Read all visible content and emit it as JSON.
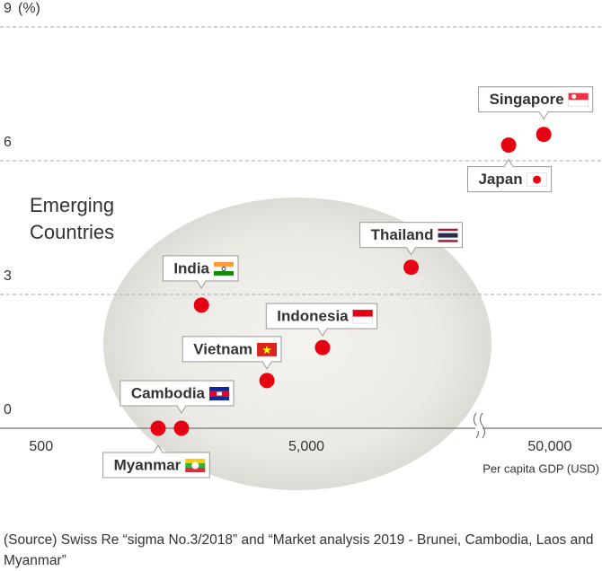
{
  "chart_data": {
    "type": "scatter",
    "y_unit": "(%)",
    "annotation": [
      "Emerging",
      "Countries"
    ],
    "xlabel": "Per capita GDP (USD)",
    "log_x": true,
    "xlim": [
      350,
      65000
    ],
    "xticks": [
      500,
      {
        "value": 5000,
        "label": "5,000"
      },
      {
        "value": 50000,
        "label": "50,000"
      }
    ],
    "ylim": [
      0,
      9
    ],
    "yticks": [
      0,
      3,
      6,
      9
    ],
    "grid": true,
    "color": "#e60012",
    "points": [
      {
        "name": "Myanmar",
        "x": 1380,
        "y": 0
      },
      {
        "name": "Cambodia",
        "x": 1690,
        "y": 0
      },
      {
        "name": "India",
        "x": 2010,
        "y": 2.76
      },
      {
        "name": "Vietnam",
        "x": 3550,
        "y": 1.07
      },
      {
        "name": "Indonesia",
        "x": 5750,
        "y": 1.81
      },
      {
        "name": "Thailand",
        "x": 12400,
        "y": 3.61
      },
      {
        "name": "Japan",
        "x": 28900,
        "y": 6.35
      },
      {
        "name": "Singapore",
        "x": 39200,
        "y": 6.59
      }
    ]
  },
  "source": "(Source) Swiss Re “sigma No.3/2018” and “Market analysis 2019 - Brunei, Cambodia, Laos and Myanmar”"
}
